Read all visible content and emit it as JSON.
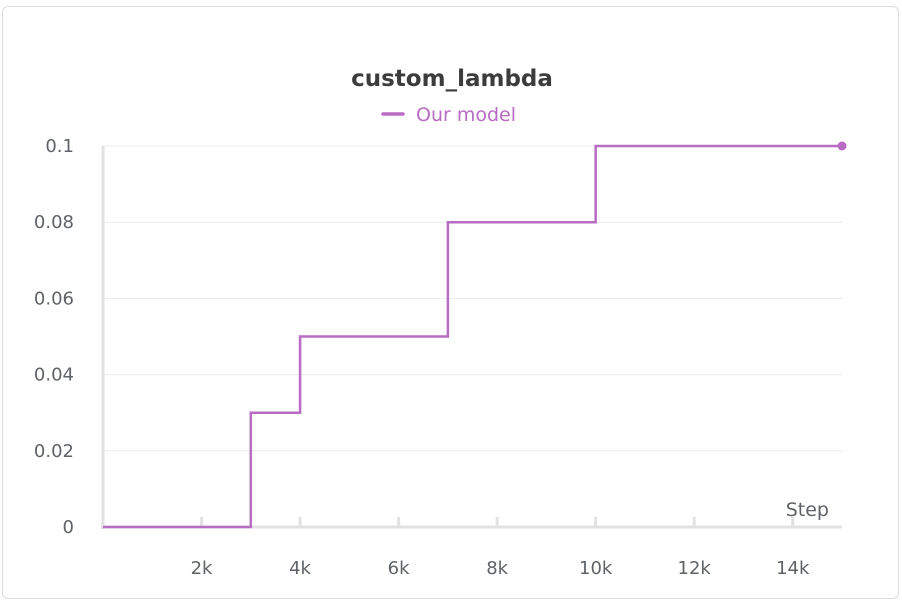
{
  "chart_data": {
    "type": "line",
    "title": "custom_lambda",
    "xlabel": "Step",
    "ylabel": "",
    "xlim": [
      0,
      15000
    ],
    "ylim": [
      0,
      0.1
    ],
    "x_ticks": [
      2000,
      4000,
      6000,
      8000,
      10000,
      12000,
      14000
    ],
    "x_tick_labels": [
      "2k",
      "4k",
      "6k",
      "8k",
      "10k",
      "12k",
      "14k"
    ],
    "y_ticks": [
      0,
      0.02,
      0.04,
      0.06,
      0.08,
      0.1
    ],
    "y_tick_labels": [
      "0",
      "0.02",
      "0.04",
      "0.06",
      "0.08",
      "0.1"
    ],
    "grid": true,
    "legend_position": "top-center",
    "series": [
      {
        "name": "Our model",
        "color": "#b86cc3",
        "step": true,
        "x": [
          0,
          3000,
          4000,
          7000,
          10000,
          15000
        ],
        "y": [
          0,
          0.03,
          0.05,
          0.08,
          0.1,
          0.1
        ]
      }
    ]
  }
}
